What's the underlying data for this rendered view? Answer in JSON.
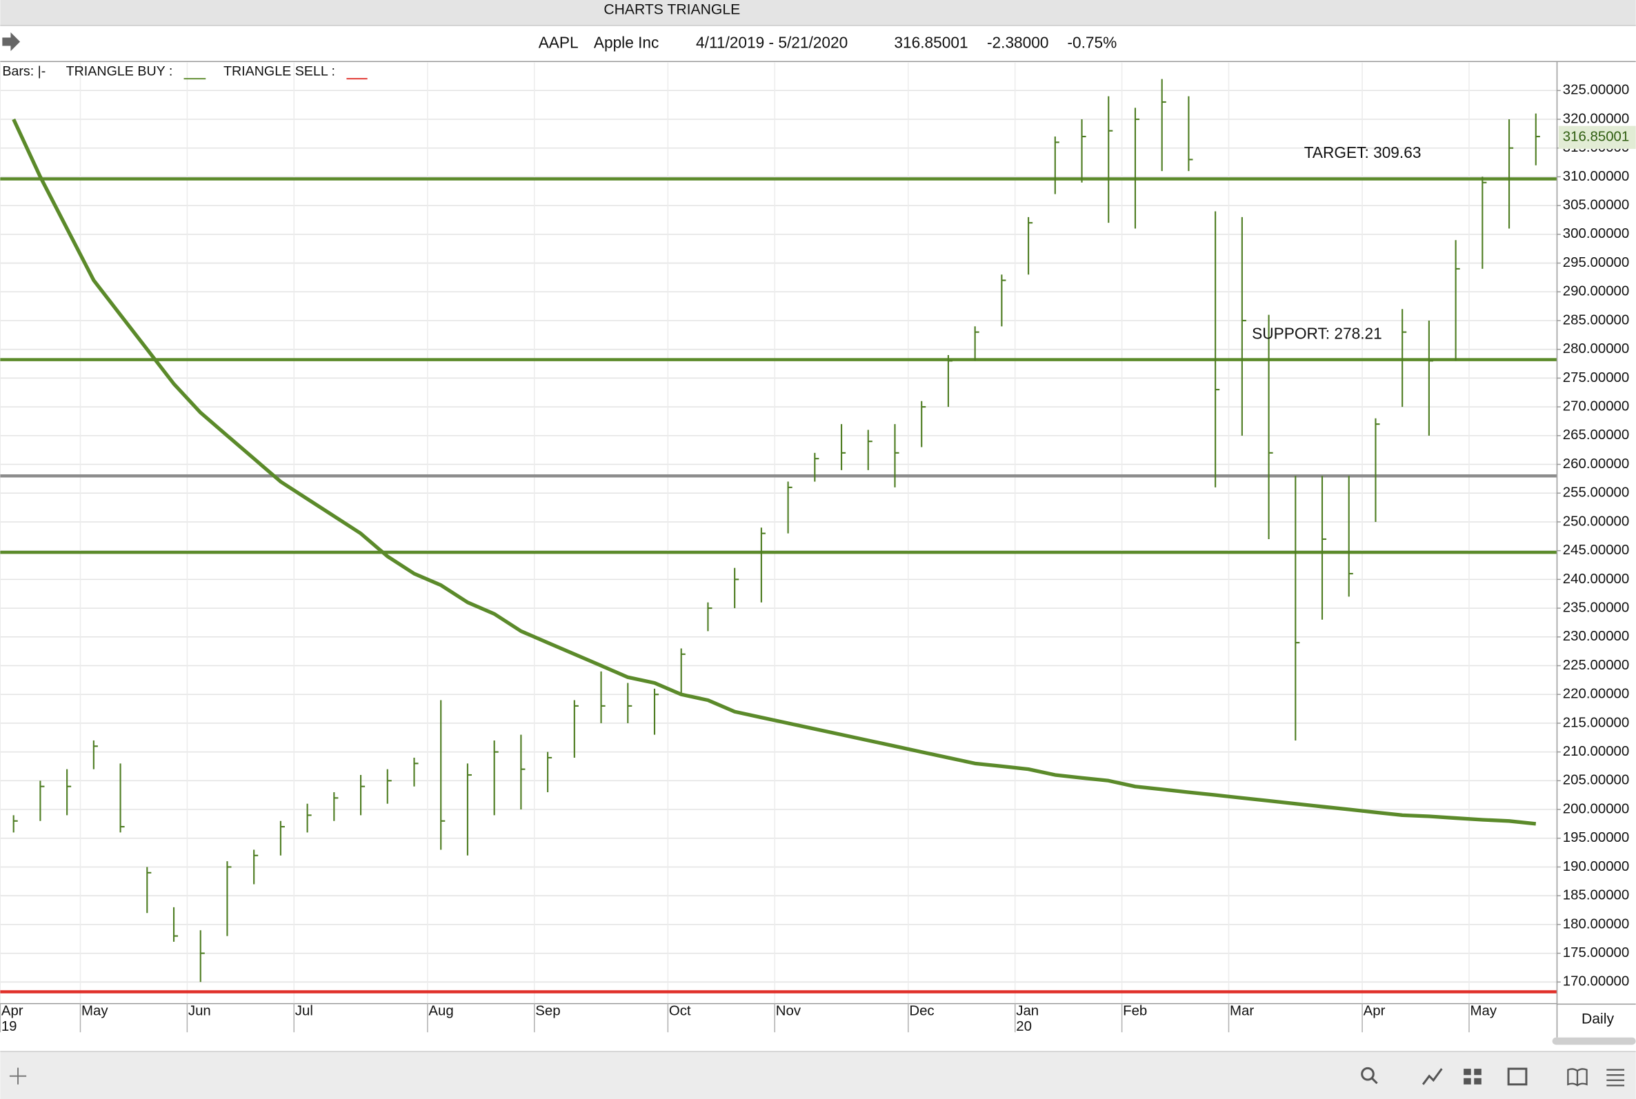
{
  "chart_data": {
    "type": "ohlc",
    "title": "CHARTS TRIANGLE",
    "symbol": "AAPL",
    "company": "Apple Inc",
    "date_range": "4/11/2019 - 5/21/2020",
    "last": 316.85001,
    "change": {
      "value": -2.38,
      "label": "-2.38000"
    },
    "change_pct": {
      "value": -0.75,
      "label": "-0.75%"
    },
    "interval": "Daily",
    "ylim": [
      166.7,
      329.5
    ],
    "yticks": [
      {
        "value": 170,
        "label": "170.00000"
      },
      {
        "value": 175,
        "label": "175.00000"
      },
      {
        "value": 180,
        "label": "180.00000"
      },
      {
        "value": 185,
        "label": "185.00000"
      },
      {
        "value": 190,
        "label": "190.00000"
      },
      {
        "value": 195,
        "label": "195.00000"
      },
      {
        "value": 200,
        "label": "200.00000"
      },
      {
        "value": 205,
        "label": "205.00000"
      },
      {
        "value": 210,
        "label": "210.00000"
      },
      {
        "value": 215,
        "label": "215.00000"
      },
      {
        "value": 220,
        "label": "220.00000"
      },
      {
        "value": 225,
        "label": "225.00000"
      },
      {
        "value": 230,
        "label": "230.00000"
      },
      {
        "value": 235,
        "label": "235.00000"
      },
      {
        "value": 240,
        "label": "240.00000"
      },
      {
        "value": 245,
        "label": "245.00000"
      },
      {
        "value": 250,
        "label": "250.00000"
      },
      {
        "value": 255,
        "label": "255.00000"
      },
      {
        "value": 260,
        "label": "260.00000"
      },
      {
        "value": 265,
        "label": "265.00000"
      },
      {
        "value": 270,
        "label": "270.00000"
      },
      {
        "value": 275,
        "label": "275.00000"
      },
      {
        "value": 280,
        "label": "280.00000"
      },
      {
        "value": 285,
        "label": "285.00000"
      },
      {
        "value": 290,
        "label": "290.00000"
      },
      {
        "value": 295,
        "label": "295.00000"
      },
      {
        "value": 300,
        "label": "300.00000"
      },
      {
        "value": 305,
        "label": "305.00000"
      },
      {
        "value": 310,
        "label": "310.00000"
      },
      {
        "value": 315,
        "label": "315.00000"
      },
      {
        "value": 320,
        "label": "320.00000"
      },
      {
        "value": 325,
        "label": "325.00000"
      }
    ],
    "grid": true,
    "categories": [
      "Apr",
      null,
      null,
      "May",
      null,
      null,
      null,
      "Jun",
      null,
      null,
      null,
      "Jul",
      null,
      null,
      null,
      null,
      "Aug",
      null,
      null,
      null,
      "Sep",
      null,
      null,
      null,
      null,
      "Oct",
      null,
      null,
      null,
      "Nov",
      null,
      null,
      null,
      null,
      "Dec",
      null,
      null,
      null,
      "Jan",
      null,
      null,
      null,
      "Feb",
      null,
      null,
      null,
      "Mar",
      null,
      null,
      null,
      null,
      "Apr",
      null,
      null,
      null,
      "May",
      null,
      null
    ],
    "year_row": [
      "19",
      null,
      null,
      null,
      null,
      null,
      null,
      null,
      null,
      null,
      null,
      null,
      null,
      null,
      null,
      null,
      null,
      null,
      null,
      null,
      null,
      null,
      null,
      null,
      null,
      null,
      null,
      null,
      null,
      null,
      null,
      null,
      null,
      null,
      null,
      null,
      null,
      null,
      "20",
      null,
      null,
      null,
      null,
      null,
      null,
      null,
      null,
      null,
      null,
      null,
      null,
      null,
      null,
      null,
      null,
      null,
      null,
      null
    ],
    "bars": {
      "name": "Bars: |-",
      "color": "#4e7d22",
      "high": [
        199,
        205,
        207,
        212,
        208,
        190,
        183,
        179,
        191,
        193,
        198,
        201,
        203,
        206,
        207,
        209,
        219,
        208,
        212,
        213,
        210,
        219,
        224,
        222,
        221,
        228,
        236,
        242,
        249,
        257,
        262,
        267,
        266,
        267,
        271,
        279,
        284,
        293,
        303,
        317,
        320,
        324,
        322,
        327,
        324,
        304,
        303,
        286,
        258,
        258,
        258,
        268,
        287,
        285,
        299,
        310,
        320,
        321
      ],
      "low": [
        196,
        198,
        199,
        207,
        196,
        182,
        177,
        170,
        178,
        187,
        192,
        196,
        198,
        199,
        201,
        204,
        193,
        192,
        199,
        200,
        203,
        209,
        215,
        215,
        213,
        220,
        231,
        235,
        236,
        248,
        257,
        259,
        259,
        256,
        263,
        270,
        278,
        284,
        293,
        307,
        309,
        302,
        301,
        311,
        311,
        256,
        265,
        247,
        212,
        233,
        237,
        250,
        270,
        265,
        278,
        294,
        301,
        312
      ],
      "close": [
        198,
        204,
        204,
        211,
        197,
        189,
        178,
        175,
        190,
        192,
        197,
        199,
        202,
        204,
        205,
        208,
        198,
        206,
        210,
        207,
        209,
        218,
        218,
        218,
        220,
        227,
        235,
        240,
        248,
        256,
        261,
        262,
        264,
        262,
        270,
        278,
        283,
        292,
        302,
        316,
        317,
        318,
        320,
        323,
        313,
        273,
        285,
        262,
        229,
        247,
        241,
        267,
        283,
        278,
        294,
        309,
        315,
        317
      ]
    },
    "curve": {
      "name": "TRIANGLE BUY :",
      "color": "#5b8a2a",
      "values": [
        320,
        310,
        301,
        292,
        286,
        280,
        274,
        269,
        265,
        261,
        257,
        254,
        251,
        248,
        244,
        241,
        239,
        236,
        234,
        231,
        229,
        227,
        225,
        223,
        222,
        220,
        219,
        217,
        216,
        215,
        214,
        213,
        212,
        211,
        210,
        209,
        208,
        207.5,
        207,
        206,
        205.5,
        205,
        204,
        203.5,
        203,
        202.5,
        202,
        201.5,
        201,
        200.5,
        200,
        199.5,
        199,
        198.8,
        198.5,
        198.2,
        198,
        197.5
      ]
    },
    "sell": {
      "name": "TRIANGLE SELL :",
      "color": "#e0302a"
    },
    "levels": [
      {
        "value": 309.63,
        "label": "TARGET: 309.63",
        "color": "#5b8a2a"
      },
      {
        "value": 278.21,
        "label": "SUPPORT: 278.21",
        "color": "#5b8a2a"
      },
      {
        "value": 258,
        "color": "#8c8c8c"
      },
      {
        "value": 244.7,
        "color": "#5b8a2a"
      },
      {
        "value": 168.3,
        "color": "#e0302a"
      }
    ]
  }
}
